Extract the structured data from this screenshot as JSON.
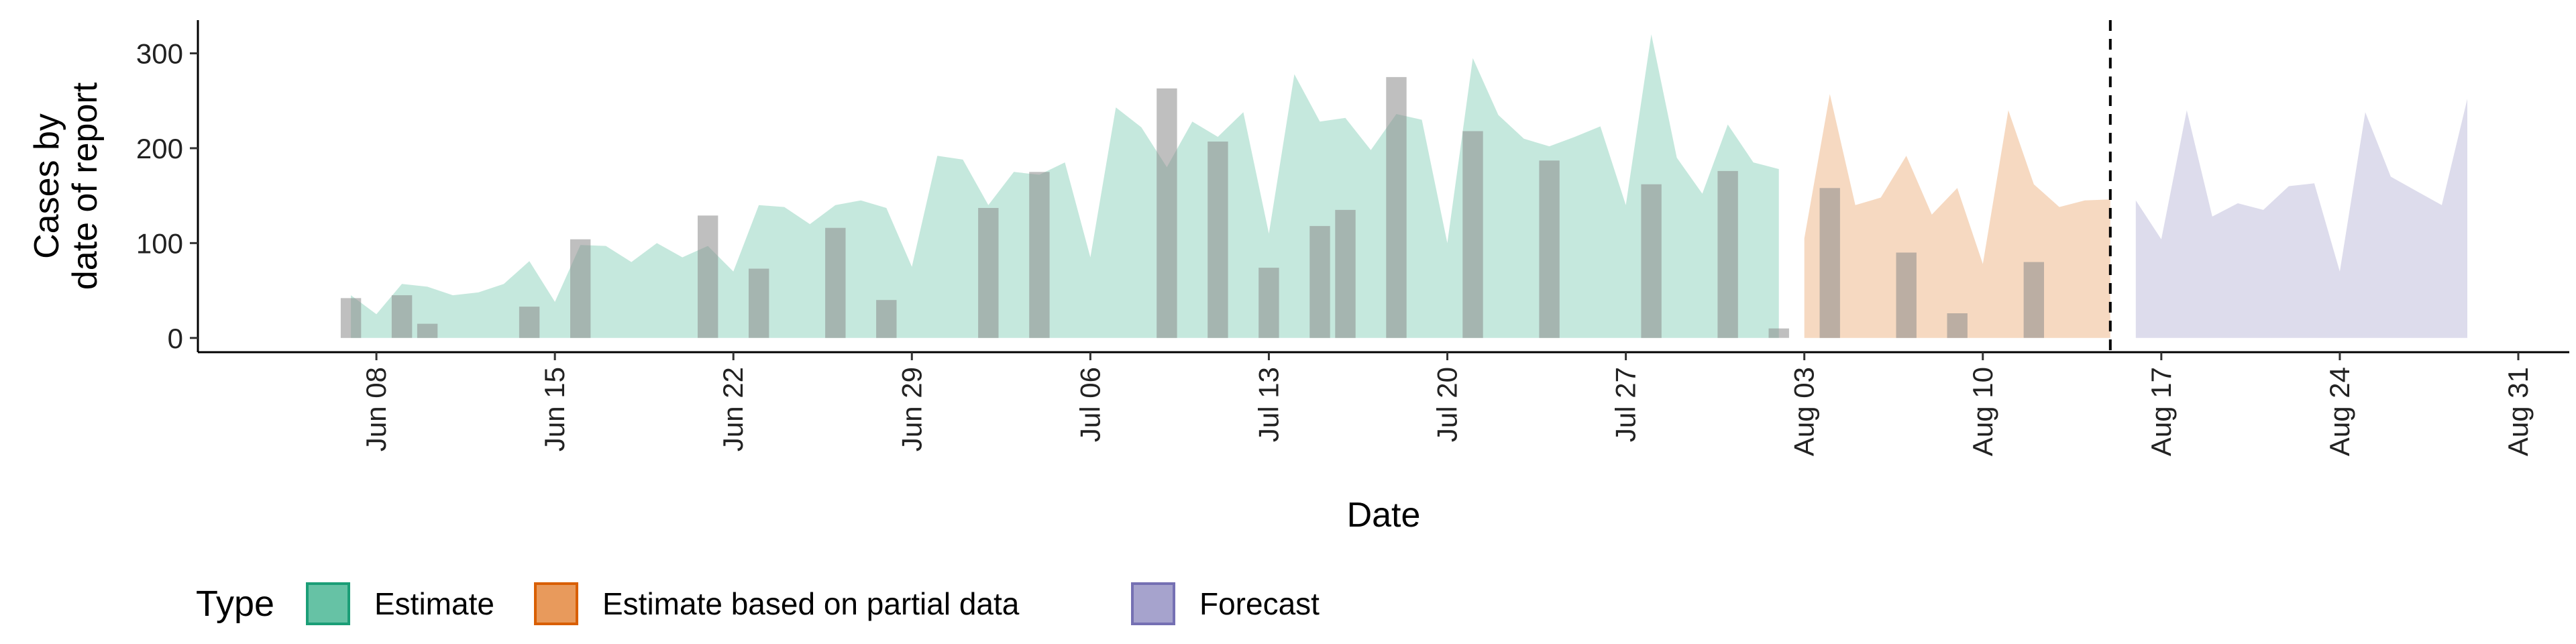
{
  "chart_data": {
    "type": "area",
    "xlabel": "Date",
    "ylabel_lines": [
      "Cases by",
      "date of report"
    ],
    "ylim": [
      -15,
      335
    ],
    "yticks": [
      0,
      100,
      200,
      300
    ],
    "ytick_labels": [
      "0",
      "100",
      "200",
      "300"
    ],
    "xlim": [
      "2020-06-01",
      "2020-09-02"
    ],
    "xticks": [
      "2020-06-08",
      "2020-06-15",
      "2020-06-22",
      "2020-06-29",
      "2020-07-06",
      "2020-07-13",
      "2020-07-20",
      "2020-07-27",
      "2020-08-03",
      "2020-08-10",
      "2020-08-17",
      "2020-08-24",
      "2020-08-31"
    ],
    "xtick_labels": [
      "Jun 08",
      "Jun 15",
      "Jun 22",
      "Jun 29",
      "Jul 06",
      "Jul 13",
      "Jul 20",
      "Jul 27",
      "Aug 03",
      "Aug 10",
      "Aug 17",
      "Aug 24",
      "Aug 31"
    ],
    "vline_date": "2020-08-15",
    "grid": false,
    "legend": {
      "title": "Type",
      "position": "bottom-left",
      "entries": [
        {
          "label": "Estimate",
          "fill": "#66c2a5",
          "stroke": "#1b9e77"
        },
        {
          "label": "Estimate based on partial data",
          "fill": "#e89a5c",
          "stroke": "#d95f02"
        },
        {
          "label": "Forecast",
          "fill": "#a6a3cd",
          "stroke": "#7570b3"
        }
      ]
    },
    "series": [
      {
        "name": "Estimate",
        "fill": "#66c2a5",
        "opacity": 0.38,
        "x": [
          "2020-06-07",
          "2020-06-08",
          "2020-06-09",
          "2020-06-10",
          "2020-06-11",
          "2020-06-12",
          "2020-06-13",
          "2020-06-14",
          "2020-06-15",
          "2020-06-16",
          "2020-06-17",
          "2020-06-18",
          "2020-06-19",
          "2020-06-20",
          "2020-06-21",
          "2020-06-22",
          "2020-06-23",
          "2020-06-24",
          "2020-06-25",
          "2020-06-26",
          "2020-06-27",
          "2020-06-28",
          "2020-06-29",
          "2020-06-30",
          "2020-07-01",
          "2020-07-02",
          "2020-07-03",
          "2020-07-04",
          "2020-07-05",
          "2020-07-06",
          "2020-07-07",
          "2020-07-08",
          "2020-07-09",
          "2020-07-10",
          "2020-07-11",
          "2020-07-12",
          "2020-07-13",
          "2020-07-14",
          "2020-07-15",
          "2020-07-16",
          "2020-07-17",
          "2020-07-18",
          "2020-07-19",
          "2020-07-20",
          "2020-07-21",
          "2020-07-22",
          "2020-07-23",
          "2020-07-24",
          "2020-07-25",
          "2020-07-26",
          "2020-07-27",
          "2020-07-28",
          "2020-07-29",
          "2020-07-30",
          "2020-07-31",
          "2020-08-01",
          "2020-08-02"
        ],
        "values": [
          45,
          25,
          57,
          54,
          45,
          48,
          57,
          81,
          38,
          98,
          97,
          80,
          100,
          85,
          97,
          70,
          140,
          138,
          120,
          140,
          145,
          137,
          75,
          192,
          188,
          140,
          175,
          172,
          185,
          85,
          243,
          222,
          180,
          228,
          212,
          238,
          110,
          278,
          228,
          232,
          198,
          236,
          230,
          100,
          295,
          235,
          210,
          202,
          212,
          223,
          140,
          320,
          190,
          152,
          225,
          185,
          178
        ]
      },
      {
        "name": "Estimate based on partial data",
        "fill": "#e89a5c",
        "opacity": 0.38,
        "x": [
          "2020-08-03",
          "2020-08-04",
          "2020-08-05",
          "2020-08-06",
          "2020-08-07",
          "2020-08-08",
          "2020-08-09",
          "2020-08-10",
          "2020-08-11",
          "2020-08-12",
          "2020-08-13",
          "2020-08-14",
          "2020-08-15"
        ],
        "values": [
          105,
          257,
          140,
          148,
          192,
          130,
          158,
          78,
          240,
          162,
          138,
          145,
          146
        ]
      },
      {
        "name": "Forecast",
        "fill": "#a6a3cd",
        "opacity": 0.38,
        "x": [
          "2020-08-16",
          "2020-08-17",
          "2020-08-18",
          "2020-08-19",
          "2020-08-20",
          "2020-08-21",
          "2020-08-22",
          "2020-08-23",
          "2020-08-24",
          "2020-08-25",
          "2020-08-26",
          "2020-08-27",
          "2020-08-28",
          "2020-08-29"
        ],
        "values": [
          145,
          104,
          240,
          128,
          142,
          135,
          160,
          163,
          70,
          238,
          170,
          155,
          140,
          252
        ]
      }
    ],
    "bars": {
      "name": "Cases by date of report",
      "fill": "#8a8a8a",
      "opacity": 0.55,
      "x": [
        "2020-06-07",
        "2020-06-09",
        "2020-06-10",
        "2020-06-14",
        "2020-06-16",
        "2020-06-21",
        "2020-06-23",
        "2020-06-26",
        "2020-06-28",
        "2020-07-02",
        "2020-07-04",
        "2020-07-09",
        "2020-07-11",
        "2020-07-13",
        "2020-07-15",
        "2020-07-16",
        "2020-07-18",
        "2020-07-21",
        "2020-07-24",
        "2020-07-28",
        "2020-07-31",
        "2020-08-02",
        "2020-08-04",
        "2020-08-07",
        "2020-08-09",
        "2020-08-12"
      ],
      "values": [
        42,
        45,
        15,
        33,
        104,
        129,
        73,
        116,
        40,
        137,
        175,
        263,
        207,
        74,
        118,
        135,
        275,
        218,
        187,
        162,
        176,
        10,
        158,
        90,
        26,
        80
      ]
    }
  }
}
